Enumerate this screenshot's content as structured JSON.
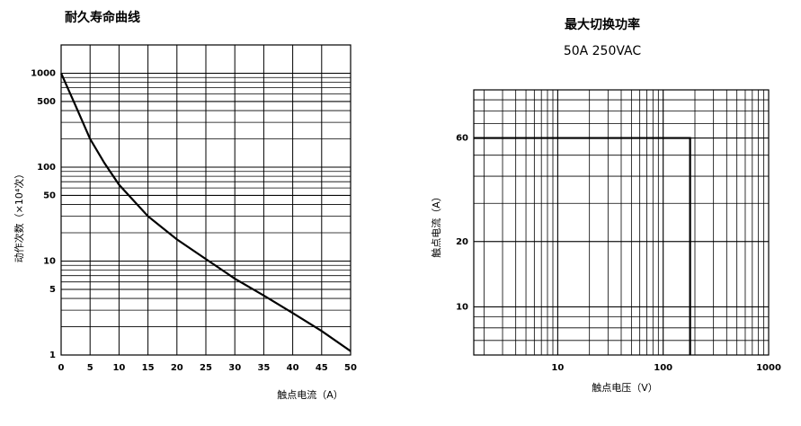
{
  "chart_data": [
    {
      "type": "line",
      "title": "耐久寿命曲线",
      "x_label": "触点电流（A）",
      "y_label": "动作次数（×10⁴次）",
      "x": [
        0,
        2.5,
        5,
        7.5,
        10,
        15,
        20,
        25,
        30,
        35,
        40,
        45,
        50
      ],
      "values": [
        1000,
        450,
        200,
        110,
        65,
        30,
        17,
        10.5,
        6.5,
        4.3,
        2.8,
        1.8,
        1.1
      ],
      "color": "#000000",
      "xscale": "linear",
      "yscale": "log",
      "xlim": [
        0,
        50
      ],
      "xticks": [
        0,
        5,
        10,
        15,
        20,
        25,
        30,
        35,
        40,
        45,
        50
      ],
      "ylim": [
        1,
        2000
      ],
      "yticks": [
        1,
        5,
        10,
        50,
        100,
        500,
        1000
      ],
      "grid": true
    },
    {
      "type": "line",
      "title": "最大切换功率",
      "subtitle": "50A 250VAC",
      "x_label": "触点电压（V）",
      "y_label": "触点电流（A）",
      "x": [
        1.6,
        180,
        180
      ],
      "values": [
        60,
        60,
        6
      ],
      "color": "#000000",
      "xscale": "log",
      "yscale": "log",
      "xlim": [
        1.6,
        1000
      ],
      "xticks": [
        10,
        100,
        1000
      ],
      "ylim": [
        6,
        100
      ],
      "yticks": [
        10,
        20,
        60
      ],
      "grid": true
    }
  ]
}
